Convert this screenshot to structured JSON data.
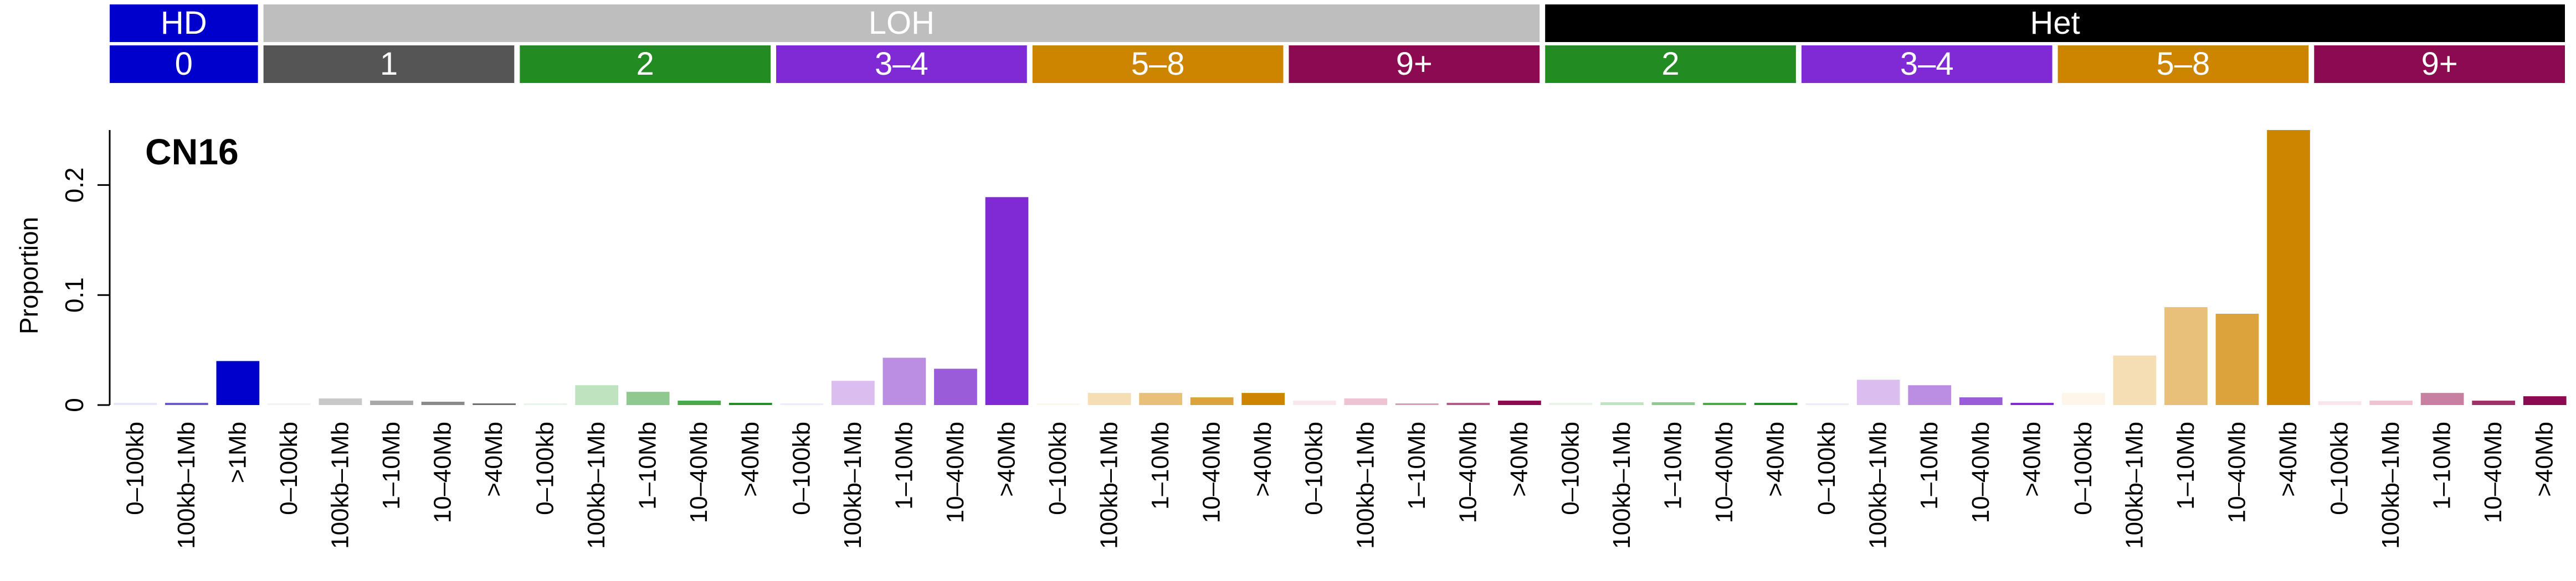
{
  "chart_data": {
    "type": "bar",
    "title": "CN16",
    "ylabel": "Proportion",
    "xlabel": "",
    "ylim": [
      0,
      0.25
    ],
    "yticks": [
      0,
      0.1,
      0.2
    ],
    "ytick_labels": [
      "0",
      "0.1",
      "0.2"
    ],
    "header_top": [
      {
        "label": "HD",
        "color": "#0000cd",
        "span": 3
      },
      {
        "label": "LOH",
        "color": "#bebebe",
        "span": 25
      },
      {
        "label": "Het",
        "color": "#000000",
        "span": 20
      }
    ],
    "header_bottom": [
      {
        "label": "0",
        "color": "#0000cd",
        "span": 3
      },
      {
        "label": "1",
        "color": "#555555",
        "span": 5
      },
      {
        "label": "2",
        "color": "#228b22",
        "span": 5
      },
      {
        "label": "3–4",
        "color": "#7f2ad4",
        "span": 5
      },
      {
        "label": "5–8",
        "color": "#cd8500",
        "span": 5
      },
      {
        "label": "9+",
        "color": "#8b0a50",
        "span": 5
      },
      {
        "label": "2",
        "color": "#228b22",
        "span": 5
      },
      {
        "label": "3–4",
        "color": "#7f2ad4",
        "span": 5
      },
      {
        "label": "5–8",
        "color": "#cd8500",
        "span": 5
      },
      {
        "label": "9+",
        "color": "#8b0a50",
        "span": 5
      }
    ],
    "categories": [
      "0–100kb",
      "100kb–1Mb",
      ">1Mb",
      "0–100kb",
      "100kb–1Mb",
      "1–10Mb",
      "10–40Mb",
      ">40Mb",
      "0–100kb",
      "100kb–1Mb",
      "1–10Mb",
      "10–40Mb",
      ">40Mb",
      "0–100kb",
      "100kb–1Mb",
      "1–10Mb",
      "10–40Mb",
      ">40Mb",
      "0–100kb",
      "100kb–1Mb",
      "1–10Mb",
      "10–40Mb",
      ">40Mb",
      "0–100kb",
      "100kb–1Mb",
      "1–10Mb",
      "10–40Mb",
      ">40Mb",
      "0–100kb",
      "100kb–1Mb",
      "1–10Mb",
      "10–40Mb",
      ">40Mb",
      "0–100kb",
      "100kb–1Mb",
      "1–10Mb",
      "10–40Mb",
      ">40Mb",
      "0–100kb",
      "100kb–1Mb",
      "1–10Mb",
      "10–40Mb",
      ">40Mb",
      "0–100kb",
      "100kb–1Mb",
      "1–10Mb",
      "10–40Mb",
      ">40Mb"
    ],
    "values": [
      0.002,
      0.002,
      0.04,
      0.0015,
      0.006,
      0.004,
      0.003,
      0.0015,
      0.0015,
      0.018,
      0.012,
      0.004,
      0.002,
      0.0015,
      0.022,
      0.043,
      0.033,
      0.189,
      0.0015,
      0.011,
      0.011,
      0.007,
      0.011,
      0.004,
      0.006,
      0.0015,
      0.002,
      0.004,
      0.002,
      0.0025,
      0.0025,
      0.002,
      0.002,
      0.0015,
      0.023,
      0.018,
      0.007,
      0.002,
      0.011,
      0.045,
      0.089,
      0.083,
      0.25,
      0.0035,
      0.004,
      0.011,
      0.004,
      0.008
    ],
    "colors": [
      "#e6e6fa",
      "#6a5acd",
      "#0000cd",
      "#f2f2f2",
      "#c8c8c8",
      "#a8a8a8",
      "#8a8a8a",
      "#6e6e6e",
      "#e6f3e6",
      "#bfe3bf",
      "#8fc98f",
      "#4aa84a",
      "#228b22",
      "#f3e8fa",
      "#dcbdef",
      "#bb8ee3",
      "#9a5cd8",
      "#7f2ad4",
      "#fdf6ea",
      "#f5deb3",
      "#e9c07a",
      "#dca33c",
      "#cd8500",
      "#fbe5ec",
      "#eec4d4",
      "#d4a0b8",
      "#b55a88",
      "#8b0a50",
      "#e6f3e6",
      "#bfe3bf",
      "#8fc98f",
      "#4aa84a",
      "#228b22",
      "#f3e8fa",
      "#dcbdef",
      "#bb8ee3",
      "#9a5cd8",
      "#7f2ad4",
      "#fdf6ea",
      "#f5deb3",
      "#e9c07a",
      "#dca33c",
      "#cd8500",
      "#fbe5ec",
      "#eec4d4",
      "#c7809f",
      "#a0306a",
      "#8b0a50"
    ],
    "grid": false,
    "legend": "none"
  }
}
